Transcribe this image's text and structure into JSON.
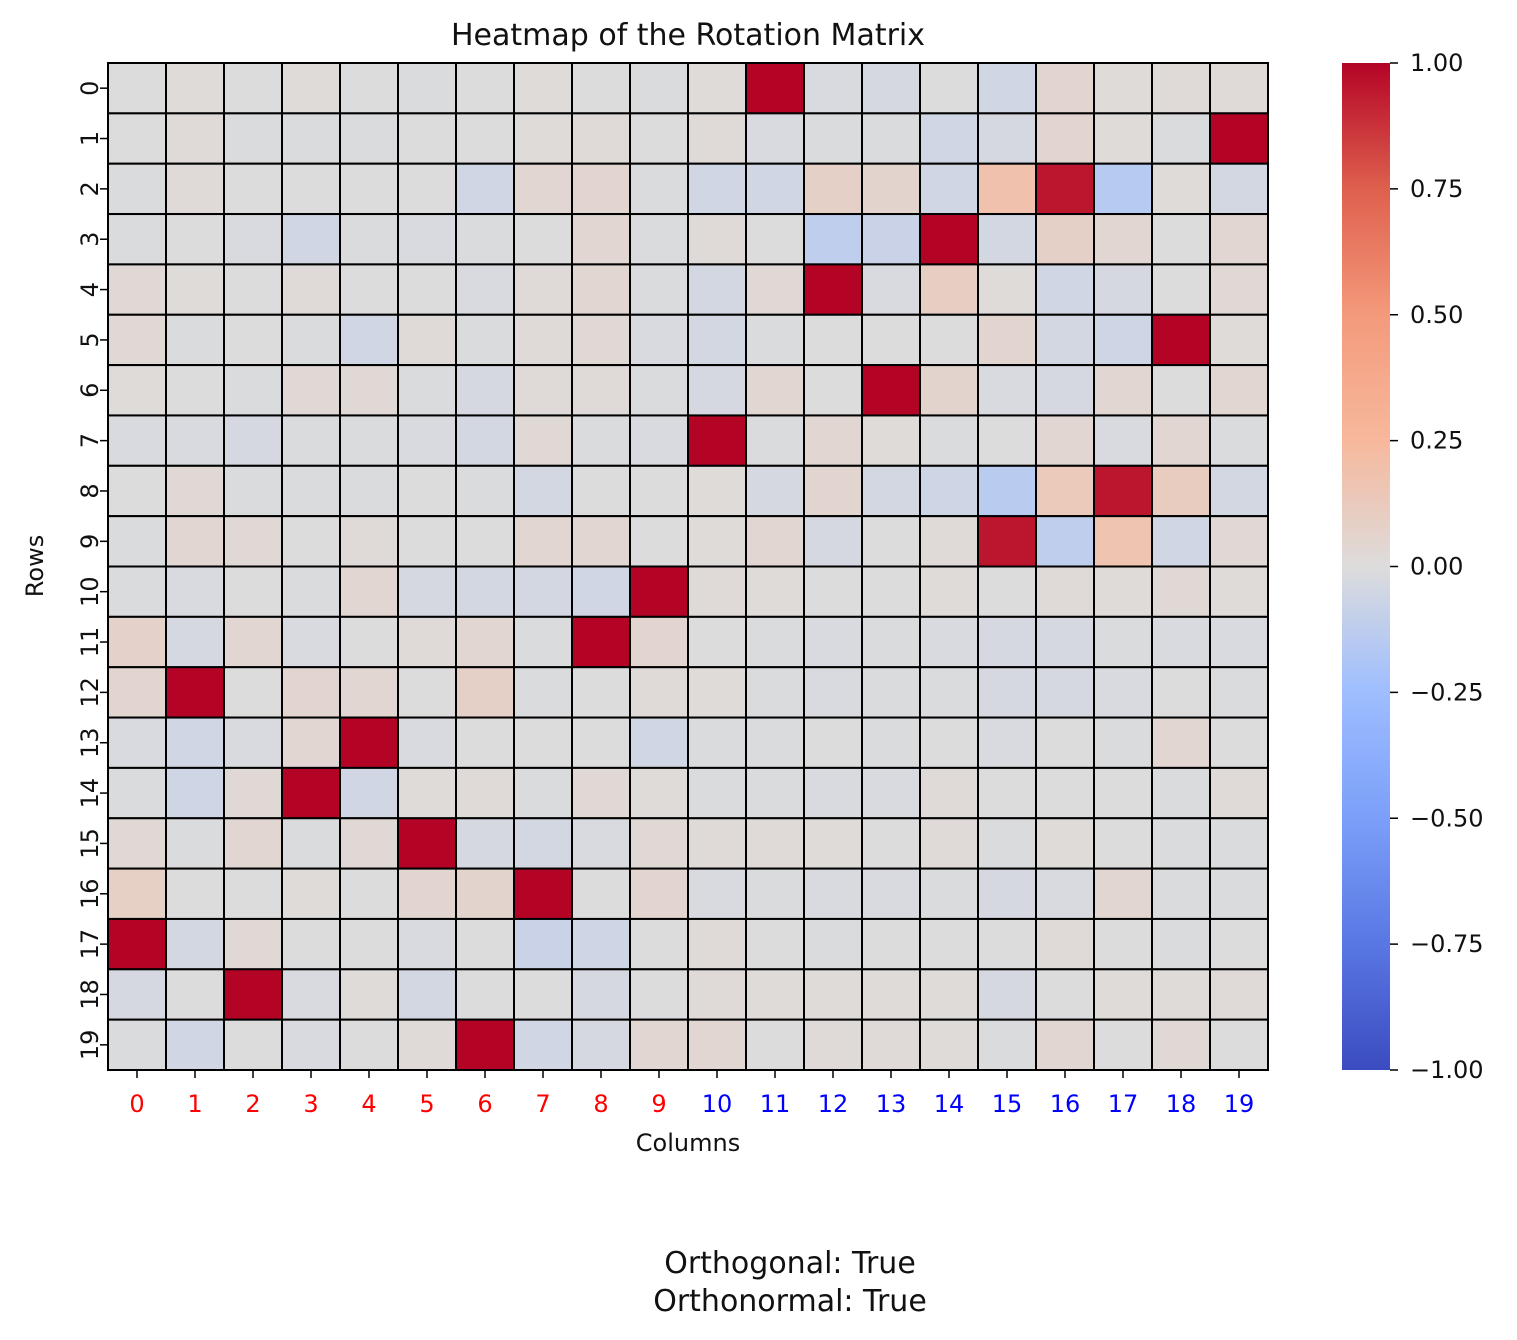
{
  "chart_data": {
    "type": "heatmap",
    "title": "Heatmap of the Rotation Matrix",
    "xlabel": "Columns",
    "ylabel": "Rows",
    "x_tick_labels": [
      "0",
      "1",
      "2",
      "3",
      "4",
      "5",
      "6",
      "7",
      "8",
      "9",
      "10",
      "11",
      "12",
      "13",
      "14",
      "15",
      "16",
      "17",
      "18",
      "19"
    ],
    "y_tick_labels": [
      "0",
      "1",
      "2",
      "3",
      "4",
      "5",
      "6",
      "7",
      "8",
      "9",
      "10",
      "11",
      "12",
      "13",
      "14",
      "15",
      "16",
      "17",
      "18",
      "19"
    ],
    "x_tick_colors": [
      "#ff0000",
      "#ff0000",
      "#ff0000",
      "#ff0000",
      "#ff0000",
      "#ff0000",
      "#ff0000",
      "#ff0000",
      "#ff0000",
      "#ff0000",
      "#0000ff",
      "#0000ff",
      "#0000ff",
      "#0000ff",
      "#0000ff",
      "#0000ff",
      "#0000ff",
      "#0000ff",
      "#0000ff",
      "#0000ff"
    ],
    "colormap": "coolwarm",
    "vmin": -1.0,
    "vmax": 1.0,
    "colorbar_ticks": [
      "1.00",
      "0.75",
      "0.50",
      "0.25",
      "0.00",
      "−0.25",
      "−0.50",
      "−0.75",
      "−1.00"
    ],
    "colorbar_tick_values": [
      1.0,
      0.75,
      0.5,
      0.25,
      0.0,
      -0.25,
      -0.5,
      -0.75,
      -1.0
    ],
    "cell_border_color": "#000000",
    "matrix": [
      [
        0.0,
        0.01,
        0.0,
        0.01,
        0.0,
        -0.01,
        0.0,
        0.01,
        0.0,
        -0.01,
        0.01,
        1.0,
        -0.02,
        -0.03,
        0.0,
        -0.05,
        0.05,
        0.01,
        0.02,
        0.02
      ],
      [
        0.0,
        0.02,
        -0.01,
        -0.01,
        -0.01,
        0.0,
        0.0,
        0.01,
        0.02,
        0.0,
        0.02,
        -0.02,
        -0.01,
        -0.01,
        -0.05,
        -0.03,
        0.05,
        0.01,
        -0.01,
        1.0
      ],
      [
        -0.01,
        0.02,
        0.0,
        0.0,
        0.0,
        0.0,
        -0.05,
        0.04,
        0.05,
        -0.01,
        -0.05,
        -0.05,
        0.08,
        0.06,
        -0.05,
        0.18,
        0.95,
        -0.15,
        0.01,
        -0.04
      ],
      [
        -0.01,
        0.0,
        -0.02,
        -0.05,
        -0.01,
        -0.02,
        -0.01,
        0.0,
        0.04,
        -0.01,
        0.02,
        0.0,
        -0.12,
        -0.08,
        1.0,
        -0.04,
        0.08,
        0.04,
        0.0,
        0.04
      ],
      [
        0.03,
        0.01,
        0.0,
        0.02,
        0.0,
        0.0,
        -0.02,
        0.02,
        0.04,
        -0.01,
        -0.04,
        0.03,
        1.0,
        -0.02,
        0.1,
        0.01,
        -0.05,
        -0.03,
        0.0,
        0.03
      ],
      [
        0.03,
        -0.01,
        0.0,
        -0.01,
        -0.05,
        0.02,
        -0.01,
        0.02,
        0.03,
        -0.02,
        -0.04,
        -0.01,
        0.0,
        0.0,
        0.0,
        0.05,
        -0.04,
        -0.06,
        1.0,
        0.01
      ],
      [
        0.01,
        0.0,
        -0.01,
        0.03,
        0.03,
        -0.01,
        -0.03,
        0.02,
        0.02,
        -0.01,
        -0.03,
        0.04,
        0.0,
        1.0,
        0.06,
        -0.02,
        -0.03,
        0.04,
        0.0,
        0.04
      ],
      [
        -0.02,
        -0.02,
        -0.03,
        -0.01,
        -0.01,
        -0.02,
        -0.04,
        0.03,
        -0.01,
        -0.02,
        1.0,
        -0.01,
        0.04,
        0.01,
        -0.01,
        0.0,
        0.04,
        -0.02,
        0.04,
        -0.01
      ],
      [
        0.0,
        0.03,
        -0.01,
        -0.01,
        -0.01,
        0.0,
        -0.01,
        -0.04,
        0.0,
        0.0,
        0.01,
        -0.03,
        0.05,
        -0.04,
        -0.06,
        -0.14,
        0.13,
        0.95,
        0.11,
        -0.04
      ],
      [
        -0.01,
        0.04,
        0.03,
        0.0,
        0.02,
        0.0,
        0.0,
        0.04,
        0.04,
        0.0,
        0.01,
        0.04,
        -0.03,
        0.0,
        0.02,
        0.95,
        -0.12,
        0.17,
        -0.05,
        0.03
      ],
      [
        -0.01,
        -0.02,
        0.0,
        -0.01,
        0.04,
        -0.03,
        -0.04,
        -0.04,
        -0.05,
        1.0,
        0.02,
        0.01,
        0.0,
        0.0,
        0.01,
        0.0,
        0.02,
        0.01,
        0.03,
        0.01
      ],
      [
        0.07,
        -0.03,
        0.04,
        -0.02,
        0.0,
        0.02,
        0.04,
        -0.01,
        1.0,
        0.05,
        0.0,
        -0.01,
        -0.02,
        -0.01,
        -0.02,
        -0.03,
        -0.03,
        -0.01,
        -0.02,
        -0.02
      ],
      [
        0.05,
        1.0,
        0.0,
        0.05,
        0.04,
        0.0,
        0.08,
        -0.01,
        0.0,
        0.02,
        0.01,
        -0.01,
        -0.02,
        -0.01,
        -0.01,
        -0.03,
        -0.03,
        -0.02,
        0.0,
        -0.01
      ],
      [
        -0.02,
        -0.05,
        -0.02,
        0.04,
        1.0,
        -0.02,
        0.0,
        0.0,
        0.0,
        -0.05,
        -0.01,
        -0.01,
        0.0,
        -0.01,
        0.0,
        -0.02,
        0.0,
        -0.01,
        0.04,
        0.0
      ],
      [
        -0.01,
        -0.06,
        0.03,
        1.0,
        -0.05,
        0.01,
        0.02,
        -0.01,
        0.03,
        0.01,
        -0.01,
        -0.01,
        -0.02,
        -0.02,
        0.02,
        0.0,
        0.0,
        0.0,
        -0.01,
        0.02
      ],
      [
        0.03,
        -0.01,
        0.04,
        -0.01,
        0.03,
        1.0,
        -0.03,
        -0.04,
        -0.02,
        0.03,
        0.02,
        0.02,
        0.01,
        0.0,
        0.02,
        -0.01,
        0.01,
        0.0,
        -0.01,
        -0.01
      ],
      [
        0.09,
        0.0,
        0.0,
        0.01,
        0.0,
        0.05,
        0.06,
        1.0,
        0.0,
        0.05,
        -0.02,
        -0.01,
        -0.02,
        -0.02,
        -0.01,
        -0.03,
        -0.02,
        0.04,
        -0.01,
        -0.01
      ],
      [
        1.0,
        -0.04,
        0.03,
        0.0,
        0.0,
        -0.02,
        0.0,
        -0.08,
        -0.06,
        0.0,
        0.02,
        0.0,
        -0.01,
        0.0,
        0.0,
        0.0,
        0.02,
        0.0,
        -0.01,
        0.0
      ],
      [
        -0.03,
        0.0,
        1.0,
        -0.02,
        0.01,
        -0.04,
        0.0,
        0.0,
        -0.03,
        0.0,
        0.02,
        0.01,
        0.01,
        0.01,
        0.01,
        -0.03,
        0.0,
        0.01,
        0.01,
        0.02
      ],
      [
        -0.01,
        -0.05,
        0.0,
        -0.02,
        0.0,
        0.02,
        1.0,
        -0.05,
        -0.03,
        0.04,
        0.04,
        0.0,
        0.02,
        0.02,
        0.01,
        -0.01,
        0.04,
        0.0,
        0.03,
        0.0
      ]
    ]
  },
  "footer": {
    "line1": "Orthogonal: True",
    "line2": "Orthonormal: True"
  }
}
